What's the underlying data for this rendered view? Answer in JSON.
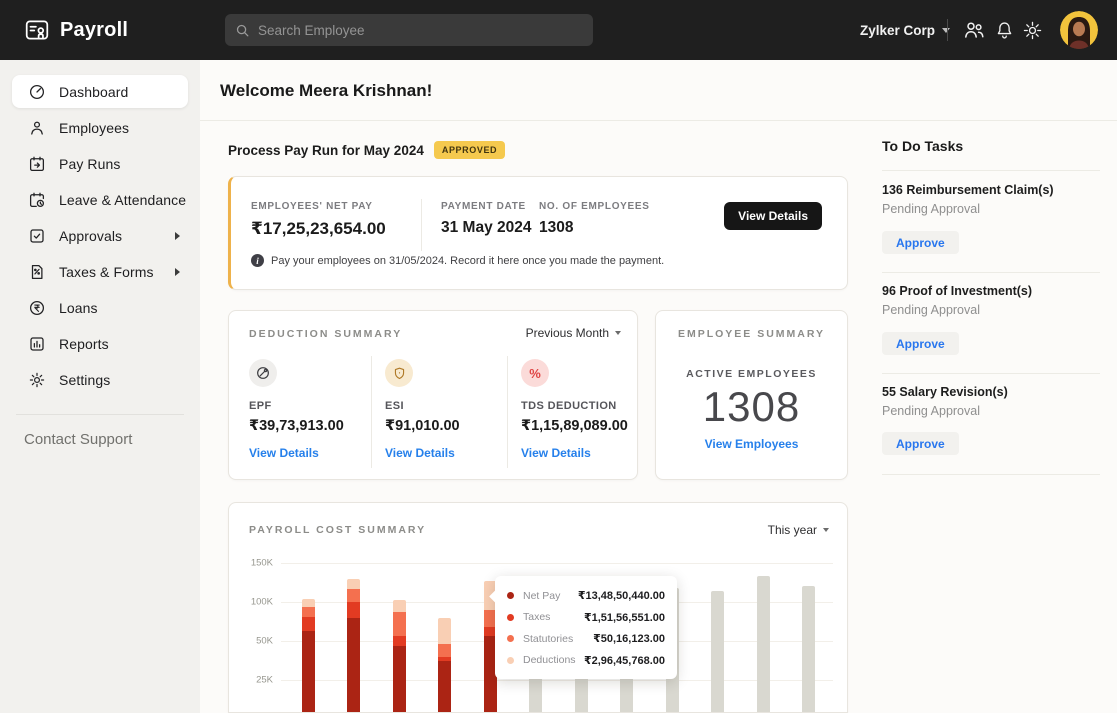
{
  "header": {
    "app_name": "Payroll",
    "search_placeholder": "Search Employee",
    "org_name": "Zylker Corp"
  },
  "sidebar": {
    "items": [
      {
        "label": "Dashboard",
        "icon": "dashboard-icon",
        "active": true
      },
      {
        "label": "Employees",
        "icon": "employees-icon"
      },
      {
        "label": "Pay Runs",
        "icon": "pay-runs-icon"
      },
      {
        "label": "Leave & Attendance",
        "icon": "leave-attendance-icon"
      },
      {
        "label": "Approvals",
        "icon": "approvals-icon",
        "has_submenu": true
      },
      {
        "label": "Taxes & Forms",
        "icon": "taxes-forms-icon",
        "has_submenu": true
      },
      {
        "label": "Loans",
        "icon": "loans-icon"
      },
      {
        "label": "Reports",
        "icon": "reports-icon"
      },
      {
        "label": "Settings",
        "icon": "settings-icon"
      }
    ],
    "support_label": "Contact Support"
  },
  "main": {
    "welcome": "Welcome Meera Krishnan!",
    "payrun": {
      "title": "Process Pay Run for May 2024",
      "badge": "APPROVED",
      "stats": [
        {
          "label": "EMPLOYEES' NET PAY",
          "value": "₹17,25,23,654.00"
        },
        {
          "label": "PAYMENT DATE",
          "value": "31 May 2024"
        },
        {
          "label": "NO. OF EMPLOYEES",
          "value": "1308"
        }
      ],
      "button": "View Details",
      "note": "Pay your employees on 31/05/2024. Record it here once you made the payment."
    },
    "deduction_summary": {
      "title": "DEDUCTION SUMMARY",
      "period": "Previous Month",
      "items": [
        {
          "label": "EPF",
          "value": "₹39,73,913.00",
          "link": "View Details",
          "icon": "epf-pin-icon"
        },
        {
          "label": "ESI",
          "value": "₹91,010.00",
          "link": "View Details",
          "icon": "esi-shield-icon"
        },
        {
          "label": "TDS DEDUCTION",
          "value": "₹1,15,89,089.00",
          "link": "View Details",
          "icon": "tds-percent-icon"
        }
      ]
    },
    "employee_summary": {
      "title": "EMPLOYEE SUMMARY",
      "label": "ACTIVE EMPLOYEES",
      "count": "1308",
      "link": "View Employees"
    }
  },
  "todo": {
    "title": "To Do Tasks",
    "tasks": [
      {
        "title": "136 Reimbursement Claim(s)",
        "status": "Pending Approval",
        "action": "Approve"
      },
      {
        "title": "96 Proof of Investment(s)",
        "status": "Pending Approval",
        "action": "Approve"
      },
      {
        "title": "55 Salary Revision(s)",
        "status": "Pending Approval",
        "action": "Approve"
      }
    ]
  },
  "chart_data": {
    "type": "bar",
    "stacked": true,
    "title": "PAYROLL COST SUMMARY",
    "period_selector": "This year",
    "legend_position": "tooltip",
    "grid": true,
    "y_ticks": [
      {
        "label": "150K",
        "value": 150
      },
      {
        "label": "100K",
        "value": 100
      },
      {
        "label": "50K",
        "value": 50
      },
      {
        "label": "25K",
        "value": 25
      }
    ],
    "series_names": [
      "Net Pay",
      "Taxes",
      "Statutories",
      "Deductions"
    ],
    "colors": {
      "net_pay": "#ab2414",
      "taxes": "#e23b22",
      "statutories": "#f4704f",
      "deductions": "#f9cfb4",
      "projected": "#d9d8d0"
    },
    "bars": [
      {
        "kind": "actual",
        "net_pay": 63,
        "taxes": 18,
        "statutories": 13,
        "deductions": 10
      },
      {
        "kind": "actual",
        "net_pay": 79,
        "taxes": 21,
        "statutories": 17,
        "deductions": 12
      },
      {
        "kind": "actual",
        "net_pay": 47,
        "taxes": 9,
        "statutories": 31,
        "deductions": 16
      },
      {
        "kind": "actual",
        "net_pay": 37,
        "taxes": 3,
        "statutories": 8,
        "deductions": 31
      },
      {
        "kind": "actual",
        "net_pay": 56,
        "taxes": 12,
        "statutories": 22,
        "deductions": 37
      },
      {
        "kind": "projected",
        "total": 112
      },
      {
        "kind": "projected",
        "total": 120
      },
      {
        "kind": "projected",
        "total": 108
      },
      {
        "kind": "projected",
        "total": 118
      },
      {
        "kind": "projected",
        "total": 114
      },
      {
        "kind": "projected",
        "total": 133
      },
      {
        "kind": "projected",
        "total": 121
      }
    ],
    "tooltip": {
      "rows": [
        {
          "label": "Net Pay",
          "value": "₹13,48,50,440.00",
          "color": "#ab2414"
        },
        {
          "label": "Taxes",
          "value": "₹1,51,56,551.00",
          "color": "#e23b22"
        },
        {
          "label": "Statutories",
          "value": "₹50,16,123.00",
          "color": "#f4704f"
        },
        {
          "label": "Deductions",
          "value": "₹2,96,45,768.00",
          "color": "#f9cfb4"
        }
      ]
    }
  },
  "colors": {
    "header_bg": "#1f1f1f",
    "sidebar_bg": "#f2f1ee",
    "accent_blue": "#2680eb",
    "badge_bg": "#f5c94e",
    "payrun_accent": "#eeb24b",
    "avatar_bg": "#f2c33c"
  }
}
